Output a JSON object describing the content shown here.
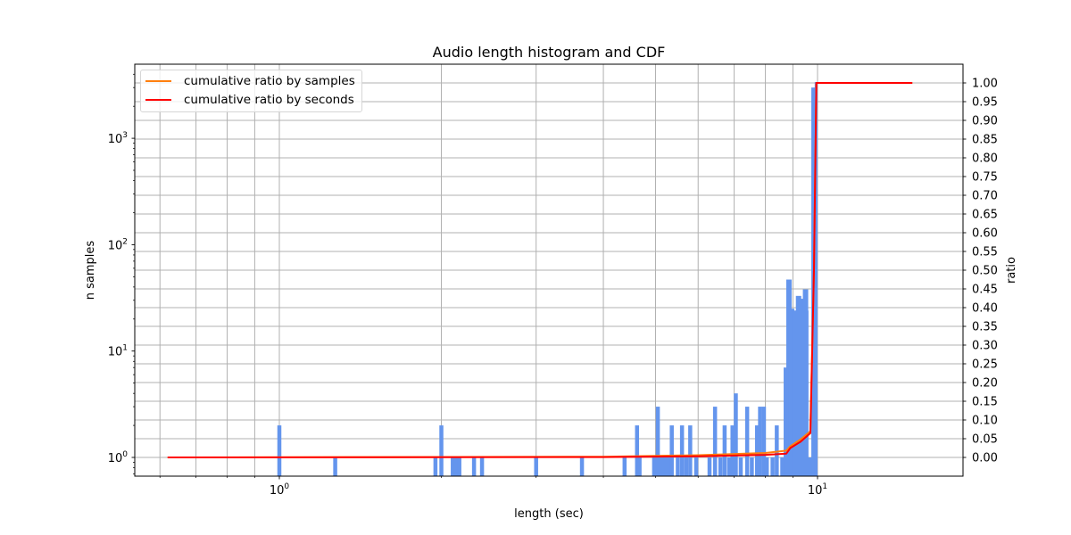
{
  "chart_data": {
    "type": "bar",
    "title": "Audio length histogram and CDF",
    "xlabel": "length (sec)",
    "ylabel": "n samples",
    "ylabel_right": "ratio",
    "xscale": "log",
    "yscale": "log",
    "xlim": [
      0.538,
      18.66
    ],
    "ylim": [
      0.667,
      5000
    ],
    "ylim_right": [
      -0.05,
      1.05
    ],
    "grid": true,
    "legend_position": "upper left",
    "x_tick_labels": [
      "10^0",
      "10^1"
    ],
    "x_ticks": [
      1,
      10
    ],
    "y_tick_labels": [
      "10^0",
      "10^1",
      "10^2",
      "10^3"
    ],
    "y_ticks": [
      1,
      10,
      100,
      1000
    ],
    "y_right_ticks": [
      "0.00",
      "0.05",
      "0.10",
      "0.15",
      "0.20",
      "0.25",
      "0.30",
      "0.35",
      "0.40",
      "0.45",
      "0.50",
      "0.55",
      "0.60",
      "0.65",
      "0.70",
      "0.75",
      "0.80",
      "0.85",
      "0.90",
      "0.95",
      "1.00"
    ],
    "histogram": {
      "name": "n samples",
      "color": "#6495ed",
      "bins_sec": [
        1.0,
        1.27,
        1.95,
        2.0,
        2.1,
        2.13,
        2.16,
        2.3,
        2.38,
        3.0,
        3.65,
        4.38,
        4.62,
        4.67,
        4.97,
        5.05,
        5.13,
        5.2,
        5.28,
        5.36,
        5.5,
        5.6,
        5.7,
        5.8,
        5.95,
        6.3,
        6.45,
        6.6,
        6.72,
        6.85,
        6.95,
        7.05,
        7.2,
        7.4,
        7.55,
        7.72,
        7.82,
        7.95,
        8.05,
        8.25,
        8.4,
        8.6,
        8.75,
        8.85,
        8.95,
        9.1,
        9.22,
        9.35,
        9.5,
        9.65,
        9.85
      ],
      "counts": [
        2,
        1,
        1,
        2,
        1,
        1,
        1,
        1,
        1,
        1,
        1,
        1,
        2,
        1,
        1,
        3,
        1,
        1,
        1,
        2,
        1,
        2,
        1,
        2,
        1,
        1,
        3,
        1,
        2,
        1,
        2,
        4,
        1,
        3,
        1,
        2,
        3,
        3,
        1,
        1,
        2,
        1,
        7,
        47,
        25,
        24,
        33,
        31,
        38,
        1,
        3000
      ]
    },
    "series": [
      {
        "name": "cumulative ratio by samples",
        "color": "#ff7f0e",
        "x": [
          0.62,
          4.0,
          6.0,
          8.0,
          8.75,
          8.9,
          9.3,
          9.7,
          9.85,
          9.95,
          15.0
        ],
        "y": [
          0.0,
          0.002,
          0.006,
          0.012,
          0.018,
          0.03,
          0.048,
          0.07,
          0.5,
          1.0,
          1.0
        ]
      },
      {
        "name": "cumulative ratio by seconds",
        "color": "#ff0000",
        "x": [
          0.62,
          4.0,
          6.0,
          8.0,
          8.75,
          8.9,
          9.3,
          9.7,
          9.85,
          9.95,
          15.0
        ],
        "y": [
          0.0,
          0.001,
          0.003,
          0.007,
          0.01,
          0.025,
          0.042,
          0.065,
          0.5,
          1.0,
          1.0
        ]
      }
    ]
  },
  "legend": {
    "items": [
      {
        "label": "cumulative ratio by samples",
        "color": "#ff7f0e"
      },
      {
        "label": "cumulative ratio by seconds",
        "color": "#ff0000"
      }
    ]
  },
  "labels": {
    "title": "Audio length histogram and CDF",
    "xlabel": "length (sec)",
    "ylabel": "n samples",
    "ylabel_right": "ratio"
  }
}
